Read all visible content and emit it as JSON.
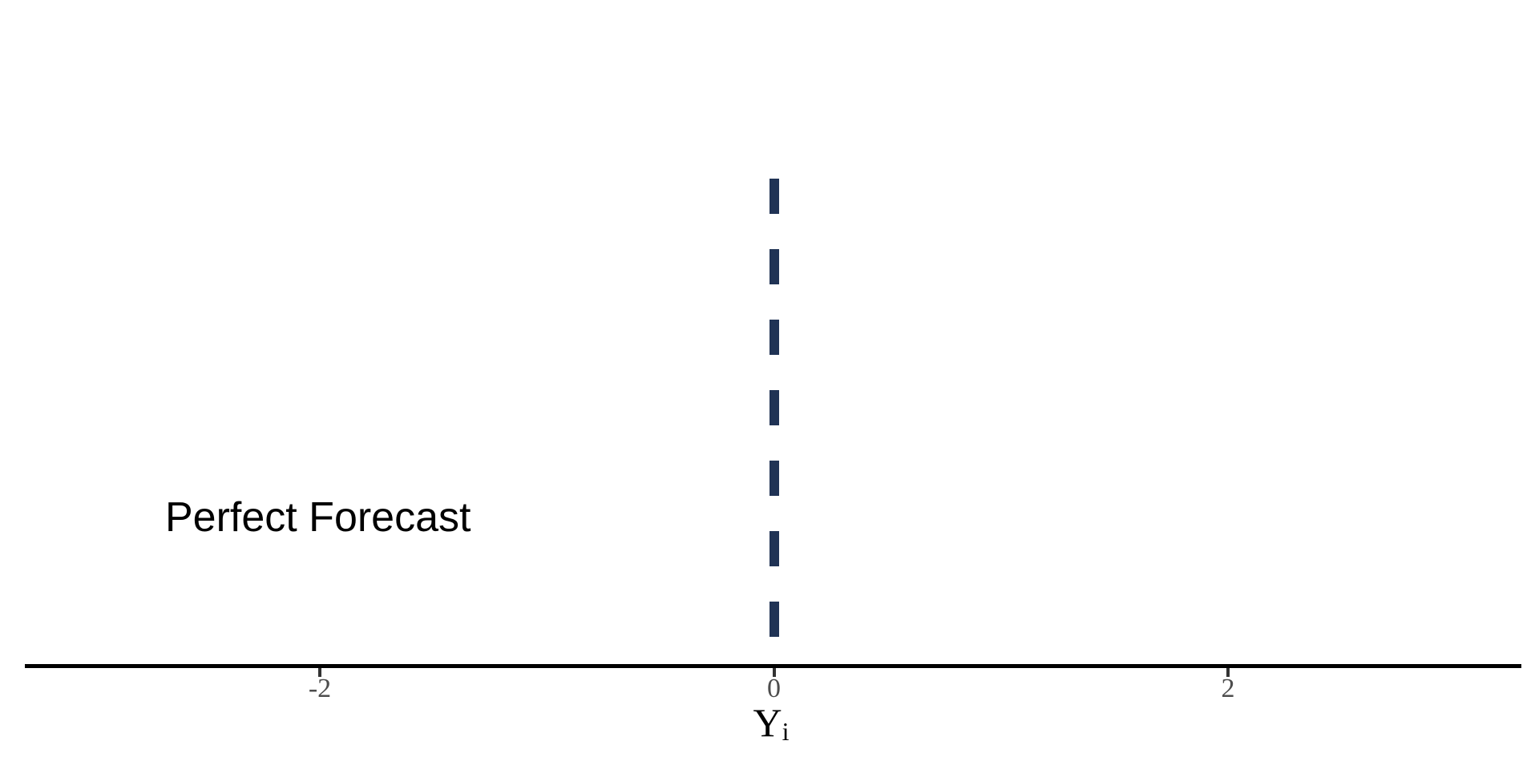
{
  "chart_data": {
    "type": "line",
    "title": "",
    "xlabel": {
      "base": "Y",
      "sub": "i"
    },
    "x_ticks": [
      {
        "value": -2,
        "label": "-2"
      },
      {
        "value": 0,
        "label": "0"
      },
      {
        "value": 2,
        "label": "2"
      }
    ],
    "xlim": [
      -3.3,
      3.3
    ],
    "grid": false,
    "legend": "none",
    "series": [
      {
        "name": "Perfect Forecast",
        "kind": "vline",
        "x": 0,
        "linetype": "dashed",
        "color": "#203355"
      }
    ],
    "annotations": [
      {
        "text": "Perfect Forecast",
        "x": -2,
        "color": "#000000"
      }
    ],
    "axis": {
      "line_color": "#000000",
      "tick_color": "#333333",
      "tick_label_color": "#4d4d4d",
      "title_color": "#000000"
    }
  }
}
